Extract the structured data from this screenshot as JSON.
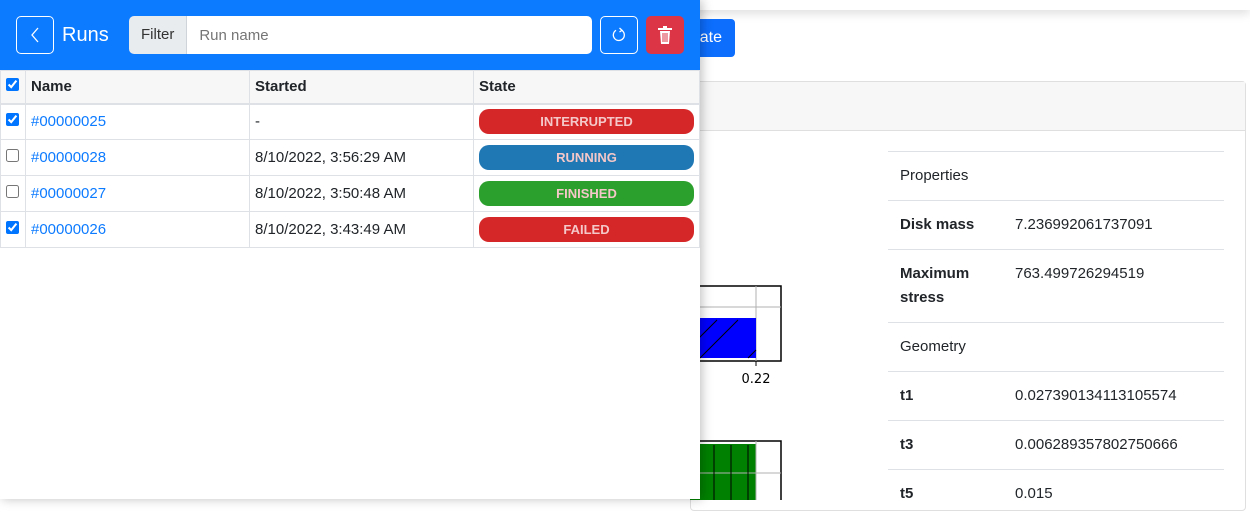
{
  "background": {
    "button_partial": "ate",
    "plot_tick": "0.22",
    "properties": [
      {
        "key": "Properties",
        "value": "",
        "header": true
      },
      {
        "key": "Disk mass",
        "value": "7.236992061737091"
      },
      {
        "key": "Maximum stress",
        "value": "763.499726294519"
      },
      {
        "key": "Geometry",
        "value": "",
        "header": true
      },
      {
        "key": "t1",
        "value": "0.027390134113105574"
      },
      {
        "key": "t3",
        "value": "0.006289357802750666"
      },
      {
        "key": "t5",
        "value": "0.015"
      }
    ]
  },
  "panel": {
    "title": "Runs",
    "filter_label": "Filter",
    "filter_placeholder": "Run name",
    "filter_value": "",
    "columns": [
      "Name",
      "Started",
      "State"
    ],
    "select_all_checked": true,
    "rows": [
      {
        "checked": true,
        "name": "#00000025",
        "started": "-",
        "state": "INTERRUPTED",
        "color": "#d62728"
      },
      {
        "checked": false,
        "name": "#00000028",
        "started": "8/10/2022, 3:56:29 AM",
        "state": "RUNNING",
        "color": "#1f77b4"
      },
      {
        "checked": false,
        "name": "#00000027",
        "started": "8/10/2022, 3:50:48 AM",
        "state": "FINISHED",
        "color": "#2ca02c"
      },
      {
        "checked": true,
        "name": "#00000026",
        "started": "8/10/2022, 3:43:49 AM",
        "state": "FAILED",
        "color": "#d62728"
      }
    ]
  }
}
